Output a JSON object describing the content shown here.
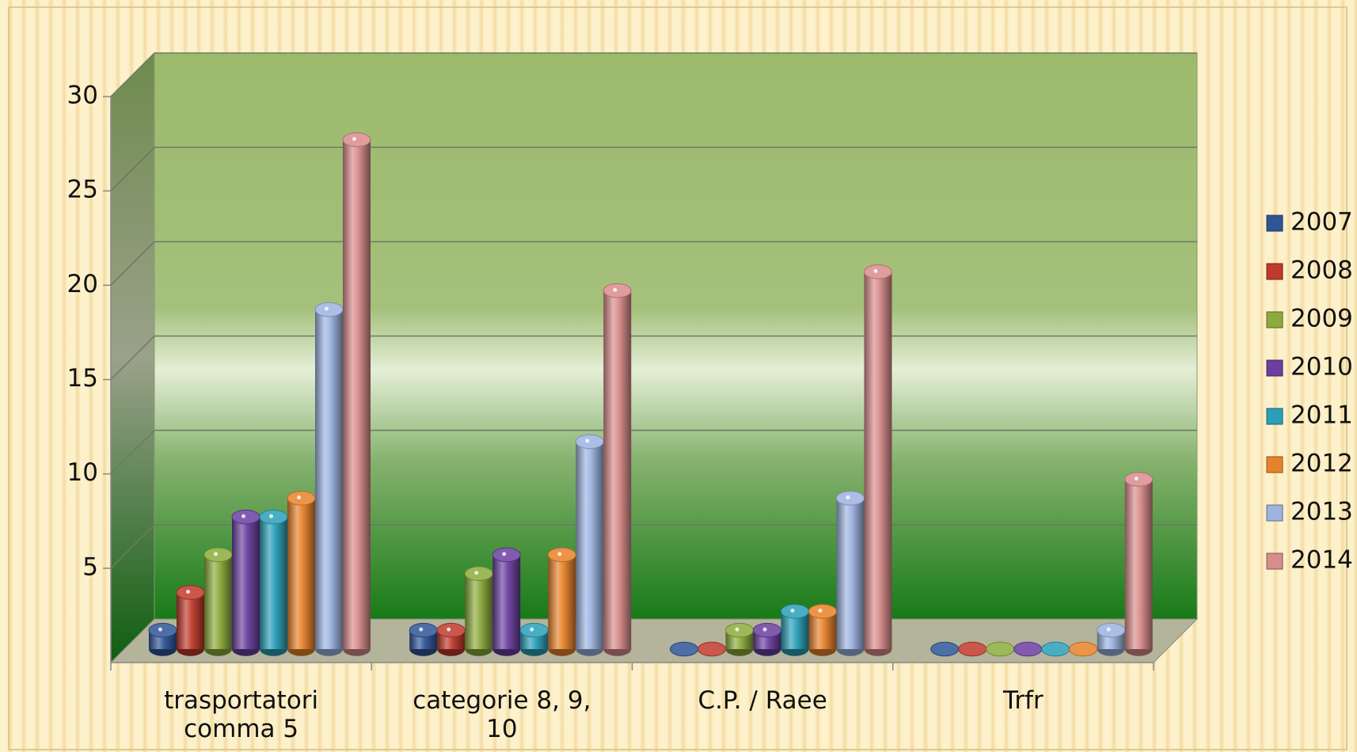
{
  "chart_data": {
    "type": "bar3d",
    "categories": [
      "trasportatori comma 5",
      "categorie 8, 9, 10",
      "C.P. / Raee",
      "Trfr"
    ],
    "series": [
      {
        "name": "2007",
        "color": "#2f5597",
        "values": [
          1,
          1,
          0,
          0
        ]
      },
      {
        "name": "2008",
        "color": "#c0392b",
        "values": [
          3,
          1,
          0,
          0
        ]
      },
      {
        "name": "2009",
        "color": "#8cab3c",
        "values": [
          5,
          4,
          1,
          0
        ]
      },
      {
        "name": "2010",
        "color": "#6b3fa0",
        "values": [
          7,
          5,
          1,
          0
        ]
      },
      {
        "name": "2011",
        "color": "#2aa0b8",
        "values": [
          7,
          1,
          2,
          0
        ]
      },
      {
        "name": "2012",
        "color": "#e8822a",
        "values": [
          8,
          5,
          2,
          0
        ]
      },
      {
        "name": "2013",
        "color": "#9db3e0",
        "values": [
          18,
          11,
          8,
          1
        ]
      },
      {
        "name": "2014",
        "color": "#d98c8c",
        "values": [
          27,
          19,
          20,
          9
        ]
      }
    ],
    "ylim": [
      0,
      30
    ],
    "yticks": [
      5,
      10,
      15,
      20,
      25,
      30
    ],
    "grid": true,
    "legend": "right"
  }
}
